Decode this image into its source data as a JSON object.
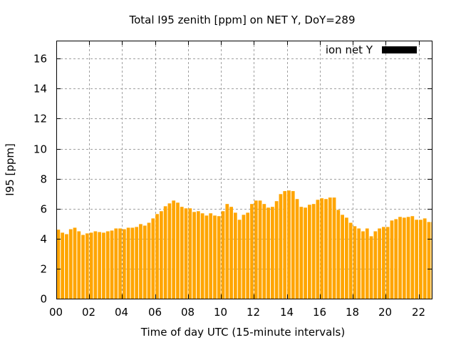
{
  "chart_data": {
    "type": "bar",
    "title": "Total I95 zenith [ppm] on NET Y, DoY=289",
    "xlabel": "Time of day UTC (15-minute intervals)",
    "ylabel": "I95 [ppm]",
    "xlim": [
      0,
      22.8
    ],
    "ylim": [
      0,
      17.2
    ],
    "grid": true,
    "legend": {
      "label": "ion net Y",
      "placement": "top-right"
    },
    "xticks": [
      "00",
      "02",
      "04",
      "06",
      "08",
      "10",
      "12",
      "14",
      "16",
      "18",
      "20",
      "22"
    ],
    "xtick_values": [
      0,
      2,
      4,
      6,
      8,
      10,
      12,
      14,
      16,
      18,
      20,
      22
    ],
    "yticks": [
      "0",
      "2",
      "4",
      "6",
      "8",
      "10",
      "12",
      "14",
      "16"
    ],
    "ytick_values": [
      0,
      2,
      4,
      6,
      8,
      10,
      12,
      14,
      16
    ],
    "interval_hours": 0.25,
    "series": [
      {
        "name": "ion net Y",
        "color": "#ffa500",
        "values": [
          4.6,
          4.4,
          4.3,
          4.63,
          4.73,
          4.49,
          4.25,
          4.35,
          4.4,
          4.49,
          4.44,
          4.4,
          4.49,
          4.54,
          4.68,
          4.68,
          4.63,
          4.73,
          4.73,
          4.78,
          4.97,
          4.87,
          5.06,
          5.35,
          5.64,
          5.83,
          6.16,
          6.35,
          6.54,
          6.4,
          6.12,
          6.02,
          6.02,
          5.78,
          5.83,
          5.69,
          5.54,
          5.69,
          5.54,
          5.5,
          5.83,
          6.31,
          6.12,
          5.73,
          5.26,
          5.59,
          5.73,
          6.31,
          6.54,
          6.54,
          6.31,
          6.07,
          6.12,
          6.5,
          6.97,
          7.17,
          7.21,
          7.17,
          6.64,
          6.12,
          6.07,
          6.26,
          6.31,
          6.59,
          6.69,
          6.64,
          6.74,
          6.74,
          5.92,
          5.59,
          5.4,
          5.06,
          4.83,
          4.68,
          4.49,
          4.68,
          4.16,
          4.49,
          4.68,
          4.78,
          4.78,
          5.21,
          5.3,
          5.45,
          5.4,
          5.45,
          5.5,
          5.26,
          5.26,
          5.35,
          5.11,
          5.11
        ]
      }
    ]
  }
}
